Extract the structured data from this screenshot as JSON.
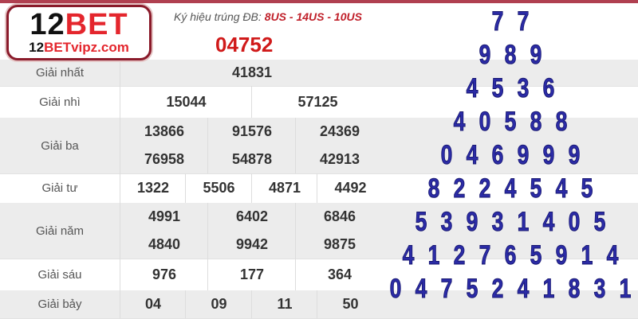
{
  "header": {
    "codes_label": "Ký hiệu trúng ĐB:",
    "codes": "8US - 14US - 10US"
  },
  "special_prize": "04752",
  "prizes": {
    "nhat": {
      "label": "Giải nhất",
      "values": [
        "41831"
      ]
    },
    "nhi": {
      "label": "Giải nhì",
      "values": [
        "15044",
        "57125"
      ]
    },
    "ba": {
      "label": "Giải ba",
      "values": [
        "13866",
        "91576",
        "24369",
        "76958",
        "54878",
        "42913"
      ]
    },
    "tu": {
      "label": "Giải tư",
      "values": [
        "1322",
        "5506",
        "4871",
        "4492"
      ]
    },
    "nam": {
      "label": "Giải năm",
      "values": [
        "4991",
        "6402",
        "6846",
        "4840",
        "9942",
        "9875"
      ]
    },
    "sau": {
      "label": "Giải sáu",
      "values": [
        "976",
        "177",
        "364"
      ]
    },
    "bay": {
      "label": "Giải bảy",
      "values": [
        "04",
        "09",
        "11",
        "50"
      ]
    }
  },
  "logo": {
    "brand_num": "12",
    "brand_word": "BET",
    "site_num": "12",
    "site_word": "BETvipz.com"
  },
  "colors": {
    "special": "#d01a1a",
    "pyramid": "#2b2ba6",
    "brand": "#e4262d"
  },
  "pyramid": [
    [
      "7",
      "7"
    ],
    [
      "9",
      "8",
      "9"
    ],
    [
      "4",
      "5",
      "3",
      "6"
    ],
    [
      "4",
      "0",
      "5",
      "8",
      "8"
    ],
    [
      "0",
      "4",
      "6",
      "9",
      "9",
      "9"
    ],
    [
      "8",
      "2",
      "2",
      "4",
      "5",
      "4",
      "5"
    ],
    [
      "5",
      "3",
      "9",
      "3",
      "1",
      "4",
      "0",
      "5"
    ],
    [
      "4",
      "1",
      "2",
      "7",
      "6",
      "5",
      "9",
      "1",
      "4"
    ],
    [
      "0",
      "4",
      "7",
      "5",
      "2",
      "4",
      "1",
      "8",
      "3",
      "1"
    ]
  ]
}
